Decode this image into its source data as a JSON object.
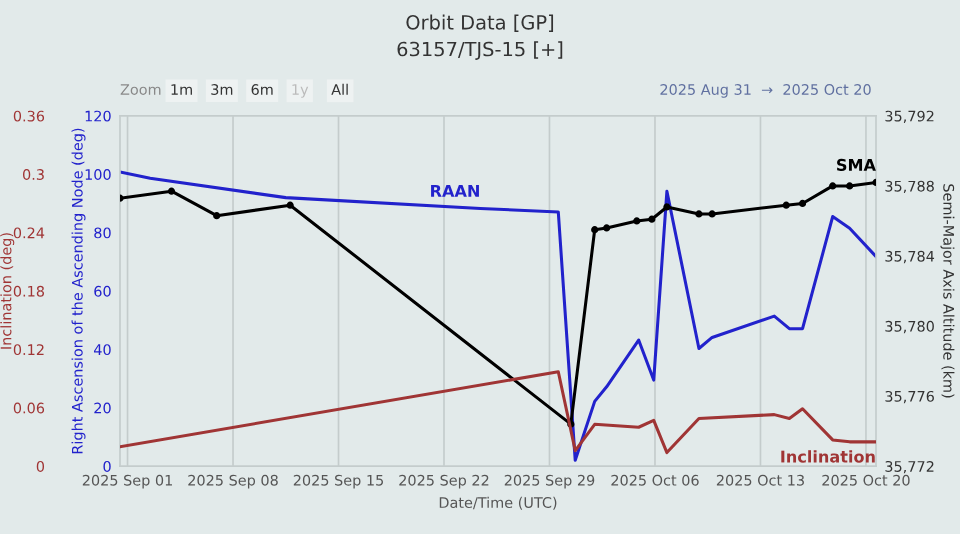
{
  "chart_data": {
    "type": "line",
    "title": "Orbit Data [GP]",
    "subtitle": "63157/TJS-15 [+]",
    "xlabel": "Date/Time (UTC)",
    "ylabel": "Right Ascension of the Ascending Node (deg)",
    "y2label": "Semi-Major Axis Altitude (km)",
    "y3label": "Inclination (deg)",
    "annotations": [
      "Zoom",
      "1m",
      "3m",
      "6m",
      "1y",
      "All",
      "2025 Aug 31  →  2025 Oct 20"
    ],
    "xlim": [
      "2025-08-31T12:00",
      "2025-10-20T16:00"
    ],
    "xticks": [
      {
        "value": "2025-09-01",
        "label": "2025 Sep 01"
      },
      {
        "value": "2025-09-08",
        "label": "2025 Sep 08"
      },
      {
        "value": "2025-09-15",
        "label": "2025 Sep 15"
      },
      {
        "value": "2025-09-22",
        "label": "2025 Sep 22"
      },
      {
        "value": "2025-09-29",
        "label": "2025 Sep 29"
      },
      {
        "value": "2025-10-06",
        "label": "2025 Oct 06"
      },
      {
        "value": "2025-10-13",
        "label": "2025 Oct 13"
      },
      {
        "value": "2025-10-20",
        "label": "2025 Oct 20"
      }
    ],
    "ylim": [
      0,
      120
    ],
    "yticks": [
      0,
      20,
      40,
      60,
      80,
      100,
      120
    ],
    "y2lim": [
      35772,
      35792
    ],
    "y2ticks": [
      {
        "value": 35772,
        "label": "35,772"
      },
      {
        "value": 35776,
        "label": "35,776"
      },
      {
        "value": 35780,
        "label": "35,780"
      },
      {
        "value": 35784,
        "label": "35,784"
      },
      {
        "value": 35788,
        "label": "35,788"
      },
      {
        "value": 35792,
        "label": "35,792"
      }
    ],
    "y3lim": [
      0,
      0.36
    ],
    "y3ticks": [
      0,
      0.06,
      0.12,
      0.18,
      0.24,
      0.3,
      0.36
    ],
    "grid": "x",
    "legend": false,
    "line_style": "solid",
    "series": [
      {
        "name": "RAAN",
        "color": "#2222cc",
        "axis": "y",
        "marker": "none",
        "x": [
          "2025-08-31T12:00",
          "2025-09-02T12:00",
          "2025-09-11T12:00",
          "2025-09-24T10:00",
          "2025-09-29T14:00",
          "2025-09-30T17:00",
          "2025-10-02T00:00",
          "2025-10-02T19:00",
          "2025-10-04T22:00",
          "2025-10-05T22:00",
          "2025-10-06T19:00",
          "2025-10-08T22:00",
          "2025-10-09T19:00",
          "2025-10-13T22:00",
          "2025-10-14T22:00",
          "2025-10-15T19:00",
          "2025-10-17T19:00",
          "2025-10-18T22:00",
          "2025-10-20T16:00"
        ],
        "values": [
          100.8,
          98.6,
          92,
          88.3,
          87.1,
          2,
          22.2,
          27.2,
          43.2,
          29.5,
          94.2,
          40.3,
          44.1,
          51.4,
          47.1,
          47.1,
          85.5,
          81.5,
          71.8
        ]
      },
      {
        "name": "SMA",
        "color": "#000000",
        "axis": "y2",
        "marker": "circle",
        "x": [
          "2025-08-31T12:00",
          "2025-09-03T22:00",
          "2025-09-06T22:00",
          "2025-09-11T19:00",
          "2025-09-30T10:00",
          "2025-10-02T00:00",
          "2025-10-02T19:00",
          "2025-10-04T19:00",
          "2025-10-05T19:00",
          "2025-10-06T19:00",
          "2025-10-08T22:00",
          "2025-10-09T19:00",
          "2025-10-14T17:00",
          "2025-10-15T19:00",
          "2025-10-17T19:00",
          "2025-10-18T22:00",
          "2025-10-20T16:00"
        ],
        "values": [
          35787.3,
          35787.7,
          35786.3,
          35786.9,
          35774.4,
          35785.5,
          35785.6,
          35786.0,
          35786.1,
          35786.8,
          35786.4,
          35786.4,
          35786.9,
          35787.0,
          35788.0,
          35788.0,
          35788.2
        ]
      },
      {
        "name": "Inclination",
        "color": "#a03535",
        "axis": "y3",
        "marker": "none",
        "x": [
          "2025-08-31T12:00",
          "2025-09-29T14:00",
          "2025-09-30T17:00",
          "2025-10-02T00:00",
          "2025-10-04T22:00",
          "2025-10-05T22:00",
          "2025-10-06T19:00",
          "2025-10-08T22:00",
          "2025-10-13T22:00",
          "2025-10-14T22:00",
          "2025-10-15T19:00",
          "2025-10-17T19:00",
          "2025-10-18T22:00",
          "2025-10-20T16:00"
        ],
        "values": [
          0.02,
          0.097,
          0.016,
          0.043,
          0.04,
          0.047,
          0.014,
          0.049,
          0.053,
          0.049,
          0.059,
          0.027,
          0.025,
          0.025
        ]
      }
    ]
  }
}
